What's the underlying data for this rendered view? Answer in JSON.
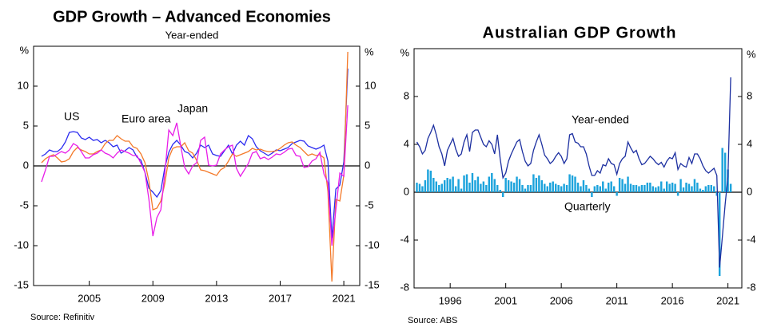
{
  "chart_data": [
    {
      "type": "line",
      "title": "GDP Growth – Advanced Economies",
      "subtitle": "Year-ended",
      "y_unit": "%",
      "source": "Source: Refinitiv",
      "x": [
        2002,
        2002.25,
        2002.5,
        2002.75,
        2003,
        2003.25,
        2003.5,
        2003.75,
        2004,
        2004.25,
        2004.5,
        2004.75,
        2005,
        2005.25,
        2005.5,
        2005.75,
        2006,
        2006.25,
        2006.5,
        2006.75,
        2007,
        2007.25,
        2007.5,
        2007.75,
        2008,
        2008.25,
        2008.5,
        2008.75,
        2009,
        2009.25,
        2009.5,
        2009.75,
        2010,
        2010.25,
        2010.5,
        2010.75,
        2011,
        2011.25,
        2011.5,
        2011.75,
        2012,
        2012.25,
        2012.5,
        2012.75,
        2013,
        2013.25,
        2013.5,
        2013.75,
        2014,
        2014.25,
        2014.5,
        2014.75,
        2015,
        2015.25,
        2015.5,
        2015.75,
        2016,
        2016.25,
        2016.5,
        2016.75,
        2017,
        2017.25,
        2017.5,
        2017.75,
        2018,
        2018.25,
        2018.5,
        2018.75,
        2019,
        2019.25,
        2019.5,
        2019.75,
        2020,
        2020.25,
        2020.5,
        2020.75,
        2021,
        2021.25
      ],
      "series": [
        {
          "name": "US",
          "color": "#2b2bf0",
          "values": [
            1.2,
            1.5,
            2.0,
            1.8,
            1.8,
            2.2,
            3.0,
            4.2,
            4.3,
            4.2,
            3.5,
            3.3,
            3.6,
            3.2,
            3.3,
            2.9,
            3.2,
            2.9,
            2.4,
            2.6,
            1.6,
            1.9,
            2.3,
            2.0,
            1.1,
            0.7,
            -0.8,
            -2.8,
            -3.3,
            -3.9,
            -3.1,
            -0.2,
            1.7,
            2.7,
            3.2,
            2.6,
            1.8,
            1.6,
            1.0,
            1.6,
            2.6,
            2.3,
            2.6,
            1.5,
            1.3,
            1.2,
            1.9,
            2.6,
            1.5,
            2.6,
            3.1,
            2.6,
            3.8,
            3.4,
            2.4,
            1.9,
            1.6,
            1.3,
            1.6,
            2.0,
            1.9,
            2.1,
            2.3,
            2.8,
            3.0,
            3.2,
            3.1,
            2.5,
            2.3,
            2.1,
            2.3,
            2.6,
            0.6,
            -9.1,
            -2.9,
            -2.4,
            0.5,
            12.2
          ]
        },
        {
          "name": "Euro area",
          "color": "#f47a2a",
          "values": [
            0.4,
            0.9,
            1.2,
            1.4,
            1.0,
            0.5,
            0.6,
            0.9,
            1.8,
            2.3,
            2.0,
            1.8,
            1.5,
            1.5,
            1.8,
            2.0,
            2.8,
            3.2,
            3.2,
            3.8,
            3.4,
            3.1,
            3.1,
            2.4,
            2.2,
            1.5,
            0.4,
            -1.9,
            -5.5,
            -5.3,
            -4.4,
            -2.2,
            1.0,
            2.2,
            2.4,
            2.4,
            2.9,
            1.9,
            1.6,
            0.7,
            -0.5,
            -0.6,
            -0.8,
            -1.0,
            -1.2,
            -0.5,
            -0.2,
            0.6,
            1.5,
            1.2,
            1.4,
            1.6,
            1.8,
            2.2,
            2.0,
            2.1,
            1.9,
            1.8,
            1.8,
            1.9,
            2.2,
            2.6,
            2.9,
            3.0,
            2.6,
            2.3,
            1.8,
            1.3,
            1.5,
            1.3,
            1.4,
            1.0,
            -3.2,
            -14.5,
            -4.2,
            -4.4,
            -1.2,
            14.3
          ]
        },
        {
          "name": "Japan",
          "color": "#e81ee8",
          "values": [
            -2.0,
            -0.5,
            1.2,
            1.2,
            1.5,
            1.8,
            1.6,
            2.0,
            2.8,
            2.5,
            1.8,
            1.0,
            1.0,
            1.4,
            1.6,
            2.0,
            1.6,
            1.4,
            1.0,
            1.6,
            2.0,
            1.8,
            1.6,
            1.3,
            1.3,
            0.3,
            -0.8,
            -4.2,
            -8.8,
            -6.5,
            -5.5,
            -0.9,
            4.5,
            3.8,
            5.4,
            2.5,
            -0.2,
            -1.0,
            0.0,
            0.4,
            3.2,
            3.6,
            0.1,
            0.0,
            0.1,
            1.5,
            2.0,
            2.4,
            2.6,
            -0.3,
            -1.3,
            -0.5,
            0.3,
            1.6,
            1.8,
            0.9,
            1.1,
            0.8,
            1.1,
            1.5,
            1.4,
            1.7,
            2.1,
            2.2,
            1.3,
            1.2,
            -0.2,
            -0.1,
            0.6,
            0.9,
            1.7,
            -1.0,
            -2.1,
            -10.0,
            -5.5,
            -0.9,
            -1.3,
            7.6
          ]
        }
      ],
      "xlim": [
        2001.5,
        2022
      ],
      "xticks": [
        2005,
        2009,
        2013,
        2017,
        2021
      ],
      "ylim": [
        -15,
        15
      ],
      "yticks": [
        -15,
        -10,
        -5,
        0,
        5,
        10
      ]
    },
    {
      "type": "combo",
      "title": "Australian GDP Growth",
      "y_unit": "%",
      "source": "Source: ABS",
      "x": [
        1993,
        1993.25,
        1993.5,
        1993.75,
        1994,
        1994.25,
        1994.5,
        1994.75,
        1995,
        1995.25,
        1995.5,
        1995.75,
        1996,
        1996.25,
        1996.5,
        1996.75,
        1997,
        1997.25,
        1997.5,
        1997.75,
        1998,
        1998.25,
        1998.5,
        1998.75,
        1999,
        1999.25,
        1999.5,
        1999.75,
        2000,
        2000.25,
        2000.5,
        2000.75,
        2001,
        2001.25,
        2001.5,
        2001.75,
        2002,
        2002.25,
        2002.5,
        2002.75,
        2003,
        2003.25,
        2003.5,
        2003.75,
        2004,
        2004.25,
        2004.5,
        2004.75,
        2005,
        2005.25,
        2005.5,
        2005.75,
        2006,
        2006.25,
        2006.5,
        2006.75,
        2007,
        2007.25,
        2007.5,
        2007.75,
        2008,
        2008.25,
        2008.5,
        2008.75,
        2009,
        2009.25,
        2009.5,
        2009.75,
        2010,
        2010.25,
        2010.5,
        2010.75,
        2011,
        2011.25,
        2011.5,
        2011.75,
        2012,
        2012.25,
        2012.5,
        2012.75,
        2013,
        2013.25,
        2013.5,
        2013.75,
        2014,
        2014.25,
        2014.5,
        2014.75,
        2015,
        2015.25,
        2015.5,
        2015.75,
        2016,
        2016.25,
        2016.5,
        2016.75,
        2017,
        2017.25,
        2017.5,
        2017.75,
        2018,
        2018.25,
        2018.5,
        2018.75,
        2019,
        2019.25,
        2019.5,
        2019.75,
        2020,
        2020.25,
        2020.5,
        2020.75,
        2021,
        2021.25
      ],
      "series": [
        {
          "name": "Quarterly",
          "type": "bar",
          "color": "#1ca3dc",
          "values": [
            0.8,
            0.7,
            0.5,
            1.0,
            1.9,
            1.8,
            1.2,
            0.9,
            0.6,
            0.7,
            1.0,
            1.2,
            1.1,
            1.3,
            0.5,
            1.1,
            0.3,
            1.4,
            1.5,
            0.8,
            1.6,
            1.0,
            1.3,
            0.7,
            0.9,
            0.6,
            1.3,
            1.6,
            1.1,
            0.6,
            0.2,
            -0.4,
            1.2,
            1.0,
            0.9,
            0.8,
            1.3,
            1.1,
            0.6,
            0.3,
            0.6,
            0.6,
            1.5,
            1.2,
            1.4,
            1.0,
            0.7,
            0.5,
            0.8,
            0.9,
            0.7,
            0.6,
            0.5,
            0.7,
            0.6,
            1.5,
            1.4,
            1.3,
            0.8,
            0.5,
            1.0,
            0.6,
            0.3,
            -0.4,
            0.5,
            0.6,
            0.5,
            0.9,
            0.3,
            0.8,
            0.9,
            0.5,
            -0.3,
            1.2,
            1.1,
            0.7,
            1.3,
            0.7,
            0.6,
            0.6,
            0.5,
            0.6,
            0.6,
            0.8,
            0.8,
            0.5,
            0.4,
            0.5,
            0.9,
            0.3,
            0.9,
            0.7,
            0.8,
            0.7,
            -0.3,
            1.1,
            0.4,
            0.8,
            0.7,
            0.5,
            1.1,
            0.8,
            0.3,
            0.2,
            0.5,
            0.6,
            0.6,
            0.5,
            -0.3,
            -7.0,
            3.7,
            3.3,
            1.9,
            0.7
          ]
        },
        {
          "name": "Year-ended",
          "type": "line",
          "color": "#1c2fa0",
          "values": [
            4.2,
            3.8,
            3.2,
            3.5,
            4.5,
            5.0,
            5.6,
            4.8,
            3.8,
            3.2,
            2.2,
            3.5,
            4.0,
            4.5,
            3.6,
            3.0,
            3.2,
            4.2,
            4.8,
            3.4,
            5.0,
            5.2,
            5.2,
            4.6,
            4.0,
            3.8,
            4.3,
            4.0,
            3.2,
            4.8,
            2.8,
            1.2,
            1.6,
            2.6,
            3.2,
            3.7,
            4.2,
            4.4,
            3.4,
            2.6,
            2.2,
            2.4,
            3.5,
            4.2,
            4.8,
            4.0,
            3.1,
            2.8,
            2.4,
            2.6,
            3.0,
            3.3,
            3.0,
            2.4,
            2.8,
            4.8,
            4.9,
            4.2,
            4.1,
            3.8,
            3.8,
            3.2,
            2.2,
            1.4,
            1.4,
            1.8,
            1.6,
            2.3,
            2.2,
            2.8,
            2.4,
            2.3,
            1.5,
            2.4,
            2.8,
            3.0,
            4.2,
            3.7,
            3.3,
            3.5,
            2.8,
            2.3,
            2.4,
            2.7,
            3.0,
            2.8,
            2.5,
            2.3,
            2.5,
            2.1,
            2.6,
            2.9,
            2.8,
            3.3,
            1.9,
            2.4,
            2.2,
            2.1,
            2.9,
            2.4,
            3.2,
            3.2,
            2.8,
            2.2,
            1.8,
            1.6,
            1.8,
            2.0,
            1.4,
            -6.3,
            -3.7,
            -1.0,
            1.3,
            9.6
          ]
        }
      ],
      "xlim": [
        1992.75,
        2022.25
      ],
      "xticks": [
        1996,
        2001,
        2006,
        2011,
        2016,
        2021
      ],
      "ylim": [
        -8,
        12
      ],
      "yticks": [
        -8,
        -4,
        0,
        4,
        8
      ]
    }
  ]
}
